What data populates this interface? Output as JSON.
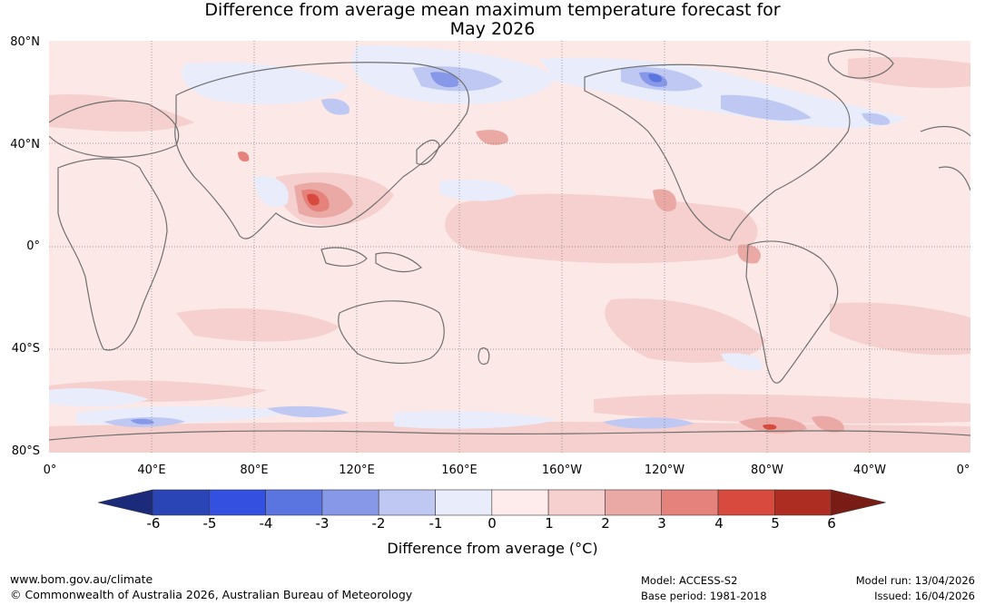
{
  "title": {
    "line1": "Difference from average mean maximum temperature forecast for",
    "line2": "May 2026"
  },
  "map": {
    "lat_labels": [
      "80°N",
      "40°N",
      "0°",
      "40°S",
      "80°S"
    ],
    "lon_labels": [
      "0°",
      "40°E",
      "80°E",
      "120°E",
      "160°E",
      "160°W",
      "120°W",
      "80°W",
      "40°W",
      "0°"
    ],
    "ocean_color": "#fce9e7",
    "coastline_color": "#707070",
    "grid_color": "#7a7a7a"
  },
  "colorbar": {
    "ticks": [
      "-6",
      "-5",
      "-4",
      "-3",
      "-2",
      "-1",
      "0",
      "1",
      "2",
      "3",
      "4",
      "5",
      "6"
    ],
    "colors": [
      "#1b2a7a",
      "#2a46b6",
      "#3350e0",
      "#5a74e0",
      "#8898e8",
      "#bfc8f2",
      "#e9edfb",
      "#fdeceb",
      "#f5d0ce",
      "#eba9a5",
      "#e5827b",
      "#d84a3e",
      "#ad2d22",
      "#7a1c16"
    ],
    "label": "Difference from average (°C)"
  },
  "footer": {
    "website": "www.bom.gov.au/climate",
    "copyright": "© Commonwealth of Australia 2026, Australian Bureau of Meteorology",
    "model": "Model: ACCESS-S2",
    "base_period": "Base period: 1981-2018",
    "model_run": "Model run: 13/04/2026",
    "issued": "Issued: 16/04/2026"
  }
}
